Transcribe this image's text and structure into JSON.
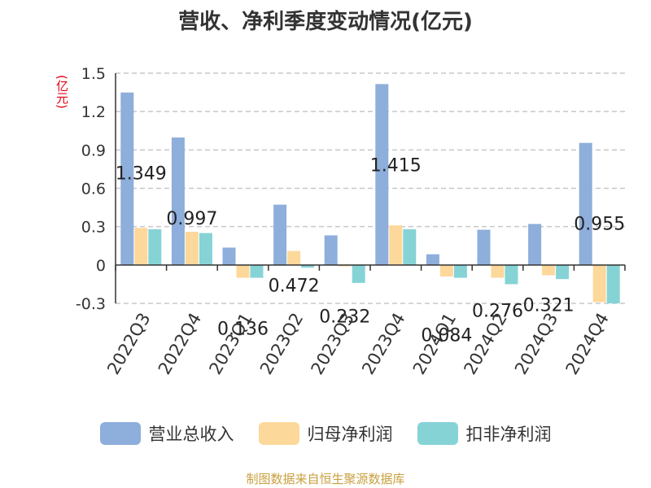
{
  "chart_data": {
    "type": "bar",
    "title": "营收、净利季度变动情况(亿元)",
    "unit_label": "(亿元)",
    "categories": [
      "2022Q3",
      "2022Q4",
      "2023Q1",
      "2023Q2",
      "2023Q3",
      "2023Q4",
      "2024Q1",
      "2024Q2",
      "2024Q3",
      "2024Q4"
    ],
    "series": [
      {
        "name": "营业总收入",
        "color": "#8eaedb",
        "values": [
          1.349,
          0.997,
          0.136,
          0.472,
          0.232,
          1.415,
          0.084,
          0.276,
          0.321,
          0.955
        ],
        "labels": [
          "1.349",
          "0.997",
          "0.136",
          "0.472",
          "0.232",
          "1.415",
          "0.084",
          "0.276",
          "0.321",
          "0.955"
        ]
      },
      {
        "name": "归母净利润",
        "color": "#fdd89b",
        "values": [
          0.29,
          0.26,
          -0.1,
          0.11,
          -0.01,
          0.31,
          -0.09,
          -0.1,
          -0.08,
          -0.29
        ]
      },
      {
        "name": "扣非净利润",
        "color": "#86d3d6",
        "values": [
          0.28,
          0.25,
          -0.1,
          -0.02,
          -0.14,
          0.28,
          -0.1,
          -0.15,
          -0.11,
          -0.3
        ]
      }
    ],
    "yticks": [
      "1.5",
      "1.2",
      "0.9",
      "0.6",
      "0.3",
      "0",
      "-0.3"
    ],
    "ylim": [
      -0.3,
      1.5
    ],
    "grid": true,
    "legend_position": "bottom",
    "source_note": "制图数据来自恒生聚源数据库"
  }
}
